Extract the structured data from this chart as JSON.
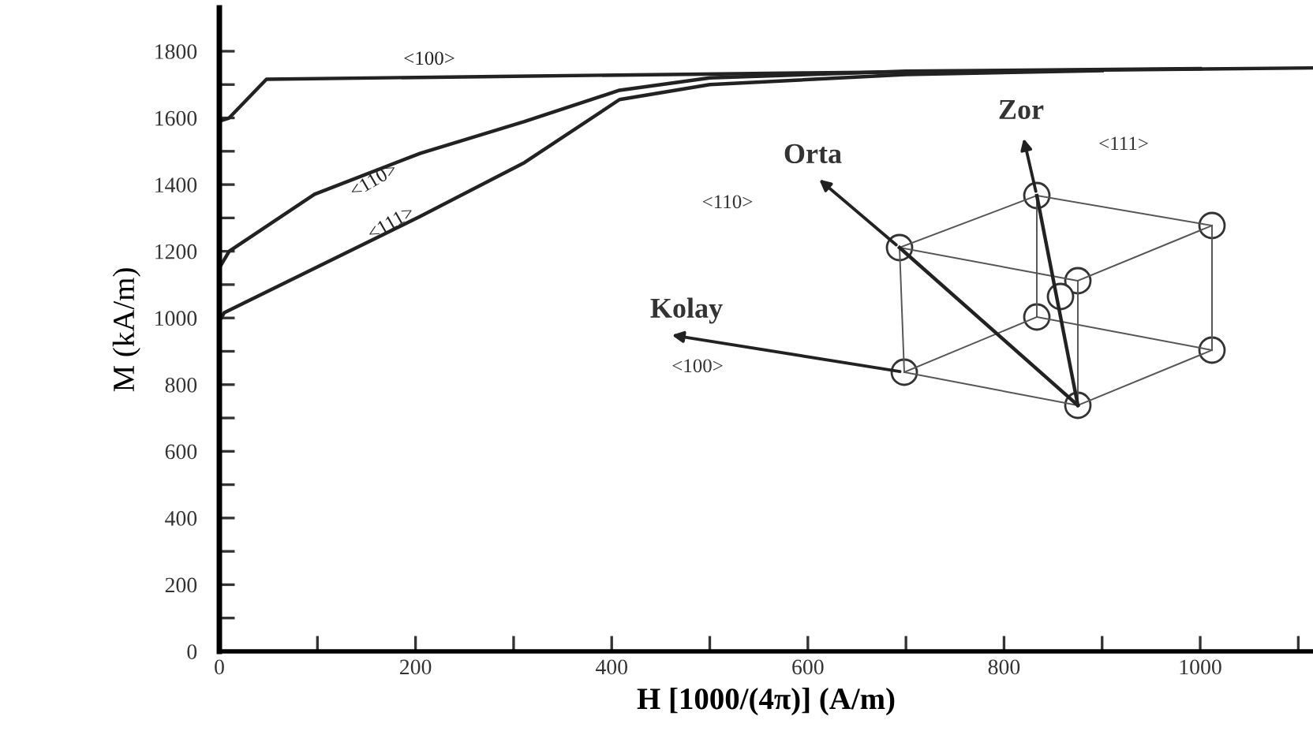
{
  "chart_data": {
    "type": "line",
    "xlabel": "H [1000/(4π)] (A/m)",
    "ylabel": "M (kA/m)",
    "xlim": [
      0,
      1115
    ],
    "ylim": [
      0,
      1930
    ],
    "xticks": [
      0,
      {
        "value": 100,
        "label": null
      },
      200,
      {
        "value": 300,
        "label": null
      },
      400,
      {
        "value": 500,
        "label": null
      },
      600,
      {
        "value": 700,
        "label": null
      },
      800,
      {
        "value": 900,
        "label": null
      },
      1000,
      {
        "value": 1100,
        "label": null
      }
    ],
    "yticks": [
      0,
      {
        "value": 100,
        "label": null
      },
      200,
      {
        "value": 300,
        "label": null
      },
      400,
      {
        "value": 500,
        "label": null
      },
      600,
      {
        "value": 700,
        "label": null
      },
      800,
      {
        "value": 900,
        "label": null
      },
      1000,
      {
        "value": 1100,
        "label": null
      },
      1200,
      {
        "value": 1300,
        "label": null
      },
      1400,
      {
        "value": 1500,
        "label": null
      },
      1600,
      {
        "value": 1700,
        "label": null
      },
      1800
    ],
    "grid": false,
    "legend": false,
    "marker": "none",
    "line_style": "solid",
    "series": [
      {
        "name": "<100>",
        "color": "#222222",
        "x": [
          0,
          0,
          10,
          48,
          300,
          600,
          1115
        ],
        "values": [
          0,
          1590,
          1600,
          1716,
          1725,
          1735,
          1750
        ]
      },
      {
        "name": "<110>",
        "color": "#222222",
        "x": [
          0,
          10,
          97,
          205,
          311,
          408,
          500,
          700,
          1000
        ],
        "values": [
          1150,
          1200,
          1371,
          1494,
          1589,
          1683,
          1720,
          1740,
          1748
        ]
      },
      {
        "name": "<111>",
        "color": "#222222",
        "x": [
          0,
          5,
          97,
          205,
          311,
          408,
          500,
          700,
          900
        ],
        "values": [
          990,
          1016,
          1149,
          1305,
          1466,
          1655,
          1700,
          1730,
          1742
        ]
      }
    ],
    "annotations": [
      "Zor",
      "<111>",
      "Orta",
      "<110>",
      "Kolay",
      "<100>"
    ]
  }
}
